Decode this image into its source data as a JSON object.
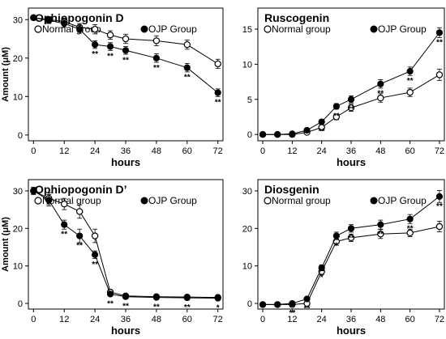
{
  "chart_data": [
    {
      "type": "line",
      "title": "Ophiopogonin D",
      "xlabel": "hours",
      "ylabel": "Amount (μM)",
      "xlim": [
        -2,
        74
      ],
      "ylim": [
        -1.5,
        33
      ],
      "xticks": [
        0,
        12,
        24,
        36,
        48,
        60,
        72
      ],
      "yticks": [
        0,
        10,
        20,
        30
      ],
      "xticklabels": [
        "0",
        "12",
        "24",
        "36",
        "48",
        "60",
        "72"
      ],
      "yticklabels": [
        "0",
        "10",
        "20",
        "30"
      ],
      "legend": "top-left",
      "grid": false,
      "series": [
        {
          "name": "Normal group",
          "marker": "open-circle",
          "x": [
            0,
            6,
            12,
            18,
            24,
            30,
            36,
            48,
            60,
            72
          ],
          "y": [
            30.5,
            30.0,
            29.5,
            28.0,
            27.5,
            26.0,
            25.0,
            24.5,
            23.5,
            18.5
          ],
          "err": [
            0.6,
            0.8,
            0.9,
            1.0,
            1.2,
            1.1,
            1.2,
            1.3,
            1.2,
            1.2
          ]
        },
        {
          "name": "OJP Group",
          "marker": "filled-circle",
          "x": [
            0,
            6,
            12,
            18,
            24,
            30,
            36,
            48,
            60,
            72
          ],
          "y": [
            30.5,
            29.8,
            29.0,
            27.5,
            23.5,
            23.0,
            22.0,
            20.0,
            17.5,
            11.0
          ],
          "err": [
            0.5,
            0.8,
            0.9,
            1.0,
            1.0,
            1.0,
            1.0,
            1.1,
            1.1,
            1.0
          ]
        }
      ],
      "annotations": [
        {
          "text": "**",
          "x": 24,
          "y": 23.5
        },
        {
          "text": "**",
          "x": 30,
          "y": 23.0
        },
        {
          "text": "**",
          "x": 36,
          "y": 22.0
        },
        {
          "text": "**",
          "x": 48,
          "y": 20.0
        },
        {
          "text": "**",
          "x": 60,
          "y": 17.5
        },
        {
          "text": "**",
          "x": 72,
          "y": 11.0
        }
      ]
    },
    {
      "type": "line",
      "title": "Ruscogenin",
      "xlabel": "hours",
      "ylabel": "",
      "xlim": [
        -2,
        74
      ],
      "ylim": [
        -0.9,
        18
      ],
      "xticks": [
        0,
        12,
        24,
        36,
        48,
        60,
        72
      ],
      "yticks": [
        0,
        5,
        10,
        15
      ],
      "xticklabels": [
        "0",
        "12",
        "24",
        "36",
        "48",
        "60",
        "72"
      ],
      "yticklabels": [
        "0",
        "5",
        "10",
        "15"
      ],
      "legend": "top-left",
      "grid": false,
      "series": [
        {
          "name": "Normal group",
          "marker": "open-circle",
          "x": [
            0,
            6,
            12,
            18,
            24,
            30,
            36,
            48,
            60,
            72
          ],
          "y": [
            0,
            0,
            0,
            0.3,
            1.0,
            2.5,
            3.8,
            5.2,
            6.0,
            8.5
          ],
          "err": [
            0.05,
            0.05,
            0.05,
            0.2,
            0.3,
            0.4,
            0.5,
            0.6,
            0.6,
            0.8
          ]
        },
        {
          "name": "OJP Group",
          "marker": "filled-circle",
          "x": [
            0,
            6,
            12,
            18,
            24,
            30,
            36,
            48,
            60,
            72
          ],
          "y": [
            0,
            0,
            0.1,
            0.6,
            1.8,
            4.0,
            5.0,
            7.2,
            9.0,
            14.5
          ],
          "err": [
            0.05,
            0.05,
            0.1,
            0.2,
            0.3,
            0.4,
            0.5,
            0.6,
            0.6,
            0.7
          ]
        }
      ],
      "annotations": [
        {
          "text": "**",
          "x": 24,
          "y": 1.8
        },
        {
          "text": "**",
          "x": 30,
          "y": 4.0
        },
        {
          "text": "**",
          "x": 36,
          "y": 5.0
        },
        {
          "text": "**",
          "x": 48,
          "y": 7.2
        },
        {
          "text": "**",
          "x": 60,
          "y": 9.0
        },
        {
          "text": "**",
          "x": 72,
          "y": 14.5
        }
      ]
    },
    {
      "type": "line",
      "title": "Ophiopogonin D’",
      "xlabel": "hours",
      "ylabel": "Amount (μM)",
      "xlim": [
        -2,
        74
      ],
      "ylim": [
        -1.5,
        33
      ],
      "xticks": [
        0,
        12,
        24,
        36,
        48,
        60,
        72
      ],
      "yticks": [
        0,
        10,
        20,
        30
      ],
      "xticklabels": [
        "0",
        "12",
        "24",
        "36",
        "48",
        "60",
        "72"
      ],
      "yticklabels": [
        "0",
        "10",
        "20",
        "30"
      ],
      "legend": "top-left",
      "grid": false,
      "series": [
        {
          "name": "Normal group",
          "marker": "open-circle",
          "x": [
            0,
            6,
            12,
            18,
            24,
            30,
            36,
            48,
            60,
            72
          ],
          "y": [
            30.0,
            28.0,
            26.5,
            24.5,
            18.0,
            3.0,
            2.0,
            1.8,
            1.7,
            1.6
          ],
          "err": [
            0.8,
            1.5,
            1.5,
            1.8,
            1.8,
            0.6,
            0.4,
            0.3,
            0.3,
            0.3
          ]
        },
        {
          "name": "OJP Group",
          "marker": "filled-circle",
          "x": [
            0,
            6,
            12,
            18,
            24,
            30,
            36,
            48,
            60,
            72
          ],
          "y": [
            30.0,
            27.5,
            21.0,
            18.0,
            13.0,
            2.5,
            1.8,
            1.6,
            1.5,
            1.4
          ],
          "err": [
            1.0,
            1.5,
            1.2,
            1.8,
            1.0,
            0.5,
            0.3,
            0.3,
            0.3,
            0.3
          ]
        }
      ],
      "annotations": [
        {
          "text": "**",
          "x": 12,
          "y": 21.0
        },
        {
          "text": "**",
          "x": 18,
          "y": 18.0
        },
        {
          "text": "**",
          "x": 24,
          "y": 13.0
        },
        {
          "text": "**",
          "x": 30,
          "y": 2.5
        },
        {
          "text": "**",
          "x": 36,
          "y": 1.8
        },
        {
          "text": "**",
          "x": 48,
          "y": 1.6
        },
        {
          "text": "**",
          "x": 60,
          "y": 1.5
        },
        {
          "text": "*",
          "x": 72,
          "y": 1.4
        }
      ]
    },
    {
      "type": "line",
      "title": "Diosgenin",
      "xlabel": "hours",
      "ylabel": "",
      "xlim": [
        -2,
        74
      ],
      "ylim": [
        -1.5,
        33
      ],
      "xticks": [
        0,
        12,
        24,
        36,
        48,
        60,
        72
      ],
      "yticks": [
        0,
        10,
        20,
        30
      ],
      "xticklabels": [
        "0",
        "12",
        "24",
        "36",
        "48",
        "60",
        "72"
      ],
      "yticklabels": [
        "0",
        "10",
        "20",
        "30"
      ],
      "legend": "top-left",
      "grid": false,
      "series": [
        {
          "name": "Normal group",
          "marker": "open-circle",
          "x": [
            0,
            6,
            12,
            18,
            24,
            30,
            36,
            48,
            60,
            72
          ],
          "y": [
            -0.3,
            -0.3,
            -0.3,
            0.0,
            8.5,
            16.5,
            17.5,
            18.5,
            18.8,
            20.5
          ],
          "err": [
            0.1,
            0.1,
            0.2,
            0.3,
            0.8,
            1.0,
            1.0,
            1.2,
            1.0,
            1.4
          ]
        },
        {
          "name": "OJP Group",
          "marker": "filled-circle",
          "x": [
            0,
            6,
            12,
            18,
            24,
            30,
            36,
            48,
            60,
            72
          ],
          "y": [
            -0.3,
            -0.3,
            0.0,
            1.2,
            9.5,
            18.0,
            20.0,
            21.0,
            22.5,
            28.5
          ],
          "err": [
            0.1,
            0.1,
            0.2,
            0.3,
            0.8,
            1.0,
            1.0,
            1.2,
            1.2,
            1.6
          ]
        }
      ],
      "annotations": [
        {
          "text": "**",
          "x": 12,
          "y": 0.0
        },
        {
          "text": "**",
          "x": 18,
          "y": 1.2
        },
        {
          "text": "*",
          "x": 24,
          "y": 9.5
        },
        {
          "text": "*",
          "x": 30,
          "y": 18.0
        },
        {
          "text": "**",
          "x": 36,
          "y": 20.0
        },
        {
          "text": "**",
          "x": 48,
          "y": 21.0
        },
        {
          "text": "**",
          "x": 60,
          "y": 22.5
        },
        {
          "text": "**",
          "x": 72,
          "y": 28.5
        }
      ]
    }
  ]
}
